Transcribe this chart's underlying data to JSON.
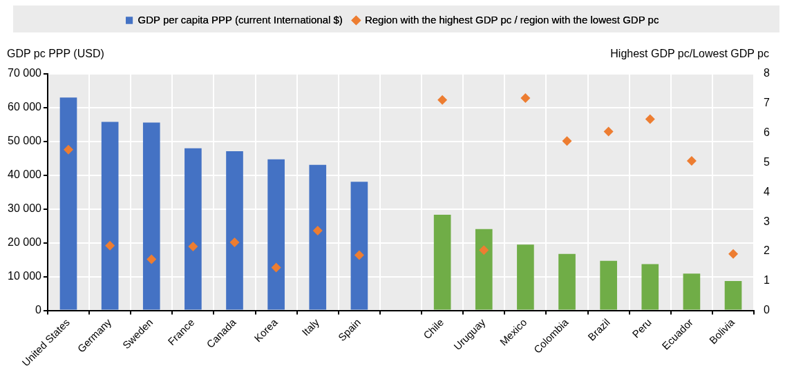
{
  "chart_data": {
    "type": "bar",
    "categories": [
      "United States",
      "Germany",
      "Sweden",
      "France",
      "Canada",
      "Korea",
      "Italy",
      "Spain",
      null,
      "Chile",
      "Uruguay",
      "Mexico",
      "Colombia",
      "Brazil",
      "Peru",
      "Ecuador",
      "Bolivia"
    ],
    "series": [
      {
        "name": "GDP per capita PPP (current International $)",
        "color": "#4472c4",
        "colors": [
          "#4472c4",
          "#4472c4",
          "#4472c4",
          "#4472c4",
          "#4472c4",
          "#4472c4",
          "#4472c4",
          "#4472c4",
          null,
          "#70ad47",
          "#70ad47",
          "#70ad47",
          "#70ad47",
          "#70ad47",
          "#70ad47",
          "#70ad47",
          "#70ad47"
        ],
        "values": [
          63000,
          55800,
          55600,
          48000,
          47100,
          44700,
          43100,
          38100,
          null,
          28300,
          24100,
          19500,
          16700,
          14700,
          13700,
          10900,
          8700
        ]
      },
      {
        "name": "Region with the highest GDP pc / region with the lowest GDP pc",
        "type": "scatter",
        "axis": "y2",
        "color": "#ed7d31",
        "marker": "diamond",
        "values": [
          5.44,
          2.19,
          1.73,
          2.16,
          2.3,
          1.45,
          2.7,
          1.87,
          null,
          7.12,
          2.04,
          7.18,
          5.73,
          6.05,
          6.47,
          5.06,
          1.91
        ]
      }
    ],
    "ylabel": "GDP pc PPP (USD)",
    "y2label": "Highest GDP pc/Lowest GDP pc",
    "ylim": [
      0,
      70000
    ],
    "yticks": [
      0,
      10000,
      20000,
      30000,
      40000,
      50000,
      60000,
      70000
    ],
    "y2lim": [
      0,
      8
    ],
    "y2ticks": [
      0,
      1,
      2,
      3,
      4,
      5,
      6,
      7,
      8
    ],
    "grid": true,
    "legend": "top"
  }
}
